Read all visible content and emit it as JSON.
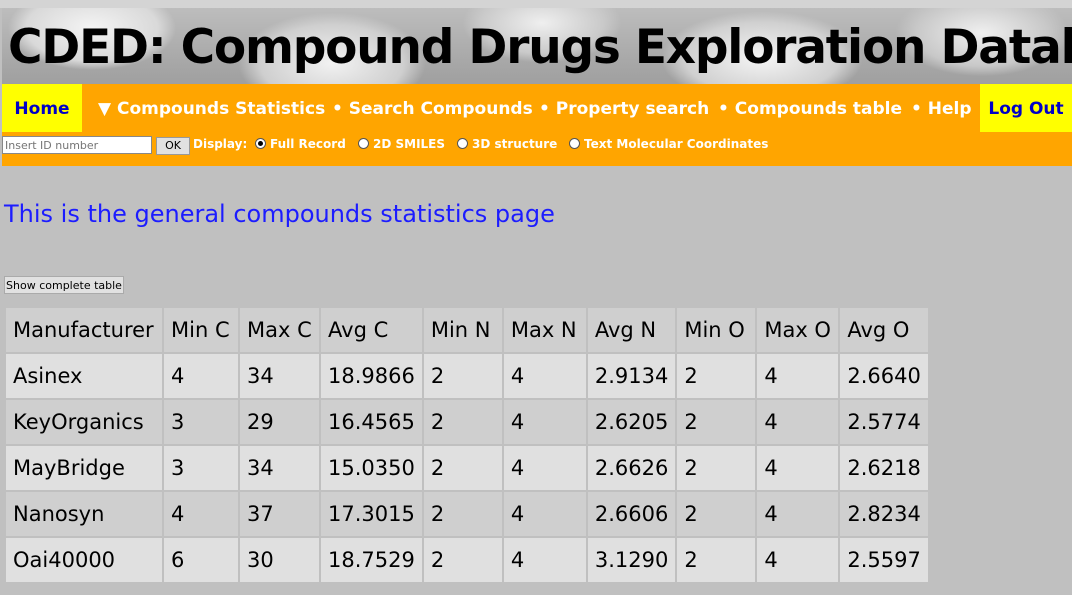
{
  "banner": {
    "title": "CDED: Compound Drugs Exploration Database"
  },
  "nav": {
    "home": "Home",
    "stats": "▼ Compounds Statistics",
    "search": "• Search Compounds",
    "property": "• Property search",
    "table": "• Compounds table",
    "help": "• Help",
    "logout": "Log Out"
  },
  "display": {
    "id_placeholder": "Insert ID number",
    "ok": "OK",
    "label": "Display:",
    "options": [
      "Full Record",
      "2D SMILES",
      "3D structure",
      "Text Molecular Coordinates"
    ],
    "selected": "Full Record"
  },
  "main": {
    "heading": "This is the general compounds statistics page",
    "show_button": "Show complete table"
  },
  "table": {
    "headers": [
      "Manufacturer",
      "Min C",
      "Max C",
      "Avg C",
      "Min N",
      "Max N",
      "Avg N",
      "Min O",
      "Max O",
      "Avg O"
    ],
    "rows": [
      [
        "Asinex",
        "4",
        "34",
        "18.9866",
        "2",
        "4",
        "2.9134",
        "2",
        "4",
        "2.6640"
      ],
      [
        "KeyOrganics",
        "3",
        "29",
        "16.4565",
        "2",
        "4",
        "2.6205",
        "2",
        "4",
        "2.5774"
      ],
      [
        "MayBridge",
        "3",
        "34",
        "15.0350",
        "2",
        "4",
        "2.6626",
        "2",
        "4",
        "2.6218"
      ],
      [
        "Nanosyn",
        "4",
        "37",
        "17.3015",
        "2",
        "4",
        "2.6606",
        "2",
        "4",
        "2.8234"
      ],
      [
        "Oai40000",
        "6",
        "30",
        "18.7529",
        "2",
        "4",
        "3.1290",
        "2",
        "4",
        "2.5597"
      ]
    ]
  }
}
